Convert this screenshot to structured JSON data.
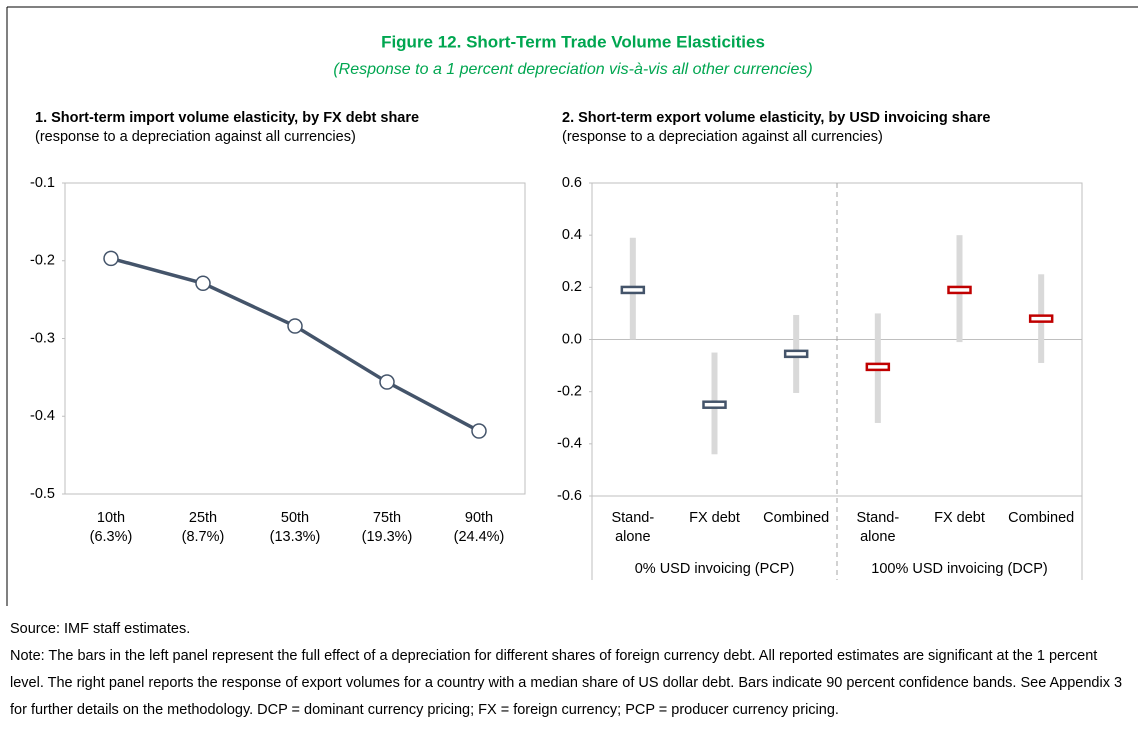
{
  "title": "Figure 12. Short-Term Trade Volume Elasticities",
  "subtitle": "(Response to a 1 percent depreciation vis-à-vis all other currencies)",
  "chart_data": [
    {
      "type": "line",
      "title": "1. Short-term import volume elasticity,  by FX debt share",
      "subtitle": "(response to a depreciation against all currencies)",
      "categories": [
        [
          "10th",
          "(6.3%)"
        ],
        [
          "25th",
          "(8.7%)"
        ],
        [
          "50th",
          "(13.3%)"
        ],
        [
          "75th",
          "(19.3%)"
        ],
        [
          "90th",
          "(24.4%)"
        ]
      ],
      "values": [
        -0.197,
        -0.229,
        -0.284,
        -0.356,
        -0.419
      ],
      "color": "#44546a",
      "ylim": [
        -0.5,
        -0.1
      ],
      "yticks": [
        -0.5,
        -0.4,
        -0.3,
        -0.2,
        -0.1
      ]
    },
    {
      "type": "interval",
      "title": "2. Short-term export volume elasticity, by USD invoicing share",
      "subtitle": "(response to a depreciation against all currencies)",
      "series": [
        {
          "group": "0% USD invoicing  (PCP)",
          "color": "#44546a",
          "categories": [
            [
              "Stand-",
              "alone"
            ],
            [
              "FX debt"
            ],
            [
              "Combined"
            ]
          ],
          "values": [
            0.19,
            -0.25,
            -0.055
          ],
          "low": [
            0.0,
            -0.44,
            -0.205
          ],
          "high": [
            0.39,
            -0.05,
            0.094
          ]
        },
        {
          "group": "100% USD invoicing  (DCP)",
          "color": "#c00000",
          "categories": [
            [
              "Stand-",
              "alone"
            ],
            [
              "FX debt"
            ],
            [
              "Combined"
            ]
          ],
          "values": [
            -0.105,
            0.19,
            0.08
          ],
          "low": [
            -0.32,
            -0.01,
            -0.09
          ],
          "high": [
            0.1,
            0.4,
            0.25
          ]
        }
      ],
      "band_color": "#d9d9d9",
      "ylim": [
        -0.6,
        0.6
      ],
      "yticks": [
        -0.6,
        -0.4,
        -0.2,
        {
          "value": 0,
          "label": "0.0"
        },
        0.2,
        0.4,
        0.6
      ]
    }
  ],
  "source": "Source: IMF staff estimates.",
  "note": "Note: The bars in the left panel represent the full effect of a depreciation for different shares of foreign currency debt. All reported estimates are significant at the 1 percent level. The right panel reports the response of export volumes for a country with a median share of US dollar debt. Bars indicate 90 percent confidence bands. See Appendix 3 for further details on the methodology. DCP = dominant currency pricing; FX = foreign currency; PCP = producer currency pricing."
}
